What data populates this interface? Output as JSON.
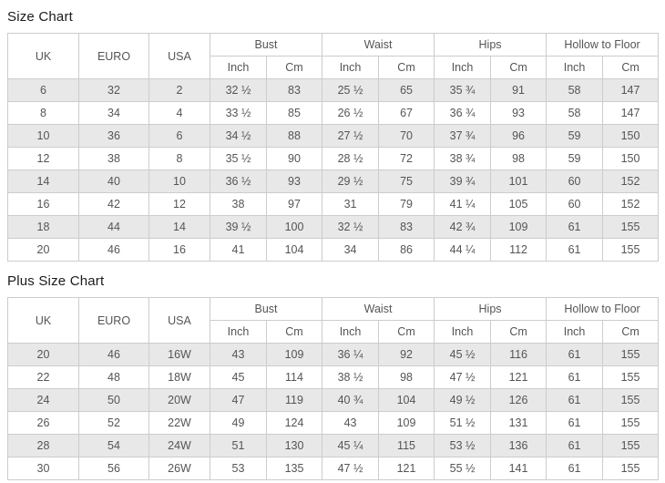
{
  "colors": {
    "border": "#cccccc",
    "row_alt_background": "#e8e8e8",
    "text": "#555555",
    "title_text": "#1a1a1a",
    "page_background": "#ffffff"
  },
  "tables": [
    {
      "title": "Size Chart",
      "columns": {
        "uk": "UK",
        "euro": "EURO",
        "usa": "USA"
      },
      "groups": [
        "Bust",
        "Waist",
        "Hips",
        "Hollow to Floor"
      ],
      "units": [
        "Inch",
        "Cm"
      ],
      "rows": [
        [
          "6",
          "32",
          "2",
          "32 ½",
          "83",
          "25 ½",
          "65",
          "35 ¾",
          "91",
          "58",
          "147"
        ],
        [
          "8",
          "34",
          "4",
          "33 ½",
          "85",
          "26 ½",
          "67",
          "36 ¾",
          "93",
          "58",
          "147"
        ],
        [
          "10",
          "36",
          "6",
          "34 ½",
          "88",
          "27 ½",
          "70",
          "37 ¾",
          "96",
          "59",
          "150"
        ],
        [
          "12",
          "38",
          "8",
          "35 ½",
          "90",
          "28 ½",
          "72",
          "38 ¾",
          "98",
          "59",
          "150"
        ],
        [
          "14",
          "40",
          "10",
          "36 ½",
          "93",
          "29 ½",
          "75",
          "39 ¾",
          "101",
          "60",
          "152"
        ],
        [
          "16",
          "42",
          "12",
          "38",
          "97",
          "31",
          "79",
          "41 ¼",
          "105",
          "60",
          "152"
        ],
        [
          "18",
          "44",
          "14",
          "39 ½",
          "100",
          "32 ½",
          "83",
          "42 ¾",
          "109",
          "61",
          "155"
        ],
        [
          "20",
          "46",
          "16",
          "41",
          "104",
          "34",
          "86",
          "44 ¼",
          "112",
          "61",
          "155"
        ]
      ]
    },
    {
      "title": "Plus Size Chart",
      "columns": {
        "uk": "UK",
        "euro": "EURO",
        "usa": "USA"
      },
      "groups": [
        "Bust",
        "Waist",
        "Hips",
        "Hollow to Floor"
      ],
      "units": [
        "Inch",
        "Cm"
      ],
      "rows": [
        [
          "20",
          "46",
          "16W",
          "43",
          "109",
          "36 ¼",
          "92",
          "45 ½",
          "116",
          "61",
          "155"
        ],
        [
          "22",
          "48",
          "18W",
          "45",
          "114",
          "38 ½",
          "98",
          "47 ½",
          "121",
          "61",
          "155"
        ],
        [
          "24",
          "50",
          "20W",
          "47",
          "119",
          "40 ¾",
          "104",
          "49 ½",
          "126",
          "61",
          "155"
        ],
        [
          "26",
          "52",
          "22W",
          "49",
          "124",
          "43",
          "109",
          "51 ½",
          "131",
          "61",
          "155"
        ],
        [
          "28",
          "54",
          "24W",
          "51",
          "130",
          "45 ¼",
          "115",
          "53 ½",
          "136",
          "61",
          "155"
        ],
        [
          "30",
          "56",
          "26W",
          "53",
          "135",
          "47 ½",
          "121",
          "55 ½",
          "141",
          "61",
          "155"
        ]
      ]
    }
  ]
}
